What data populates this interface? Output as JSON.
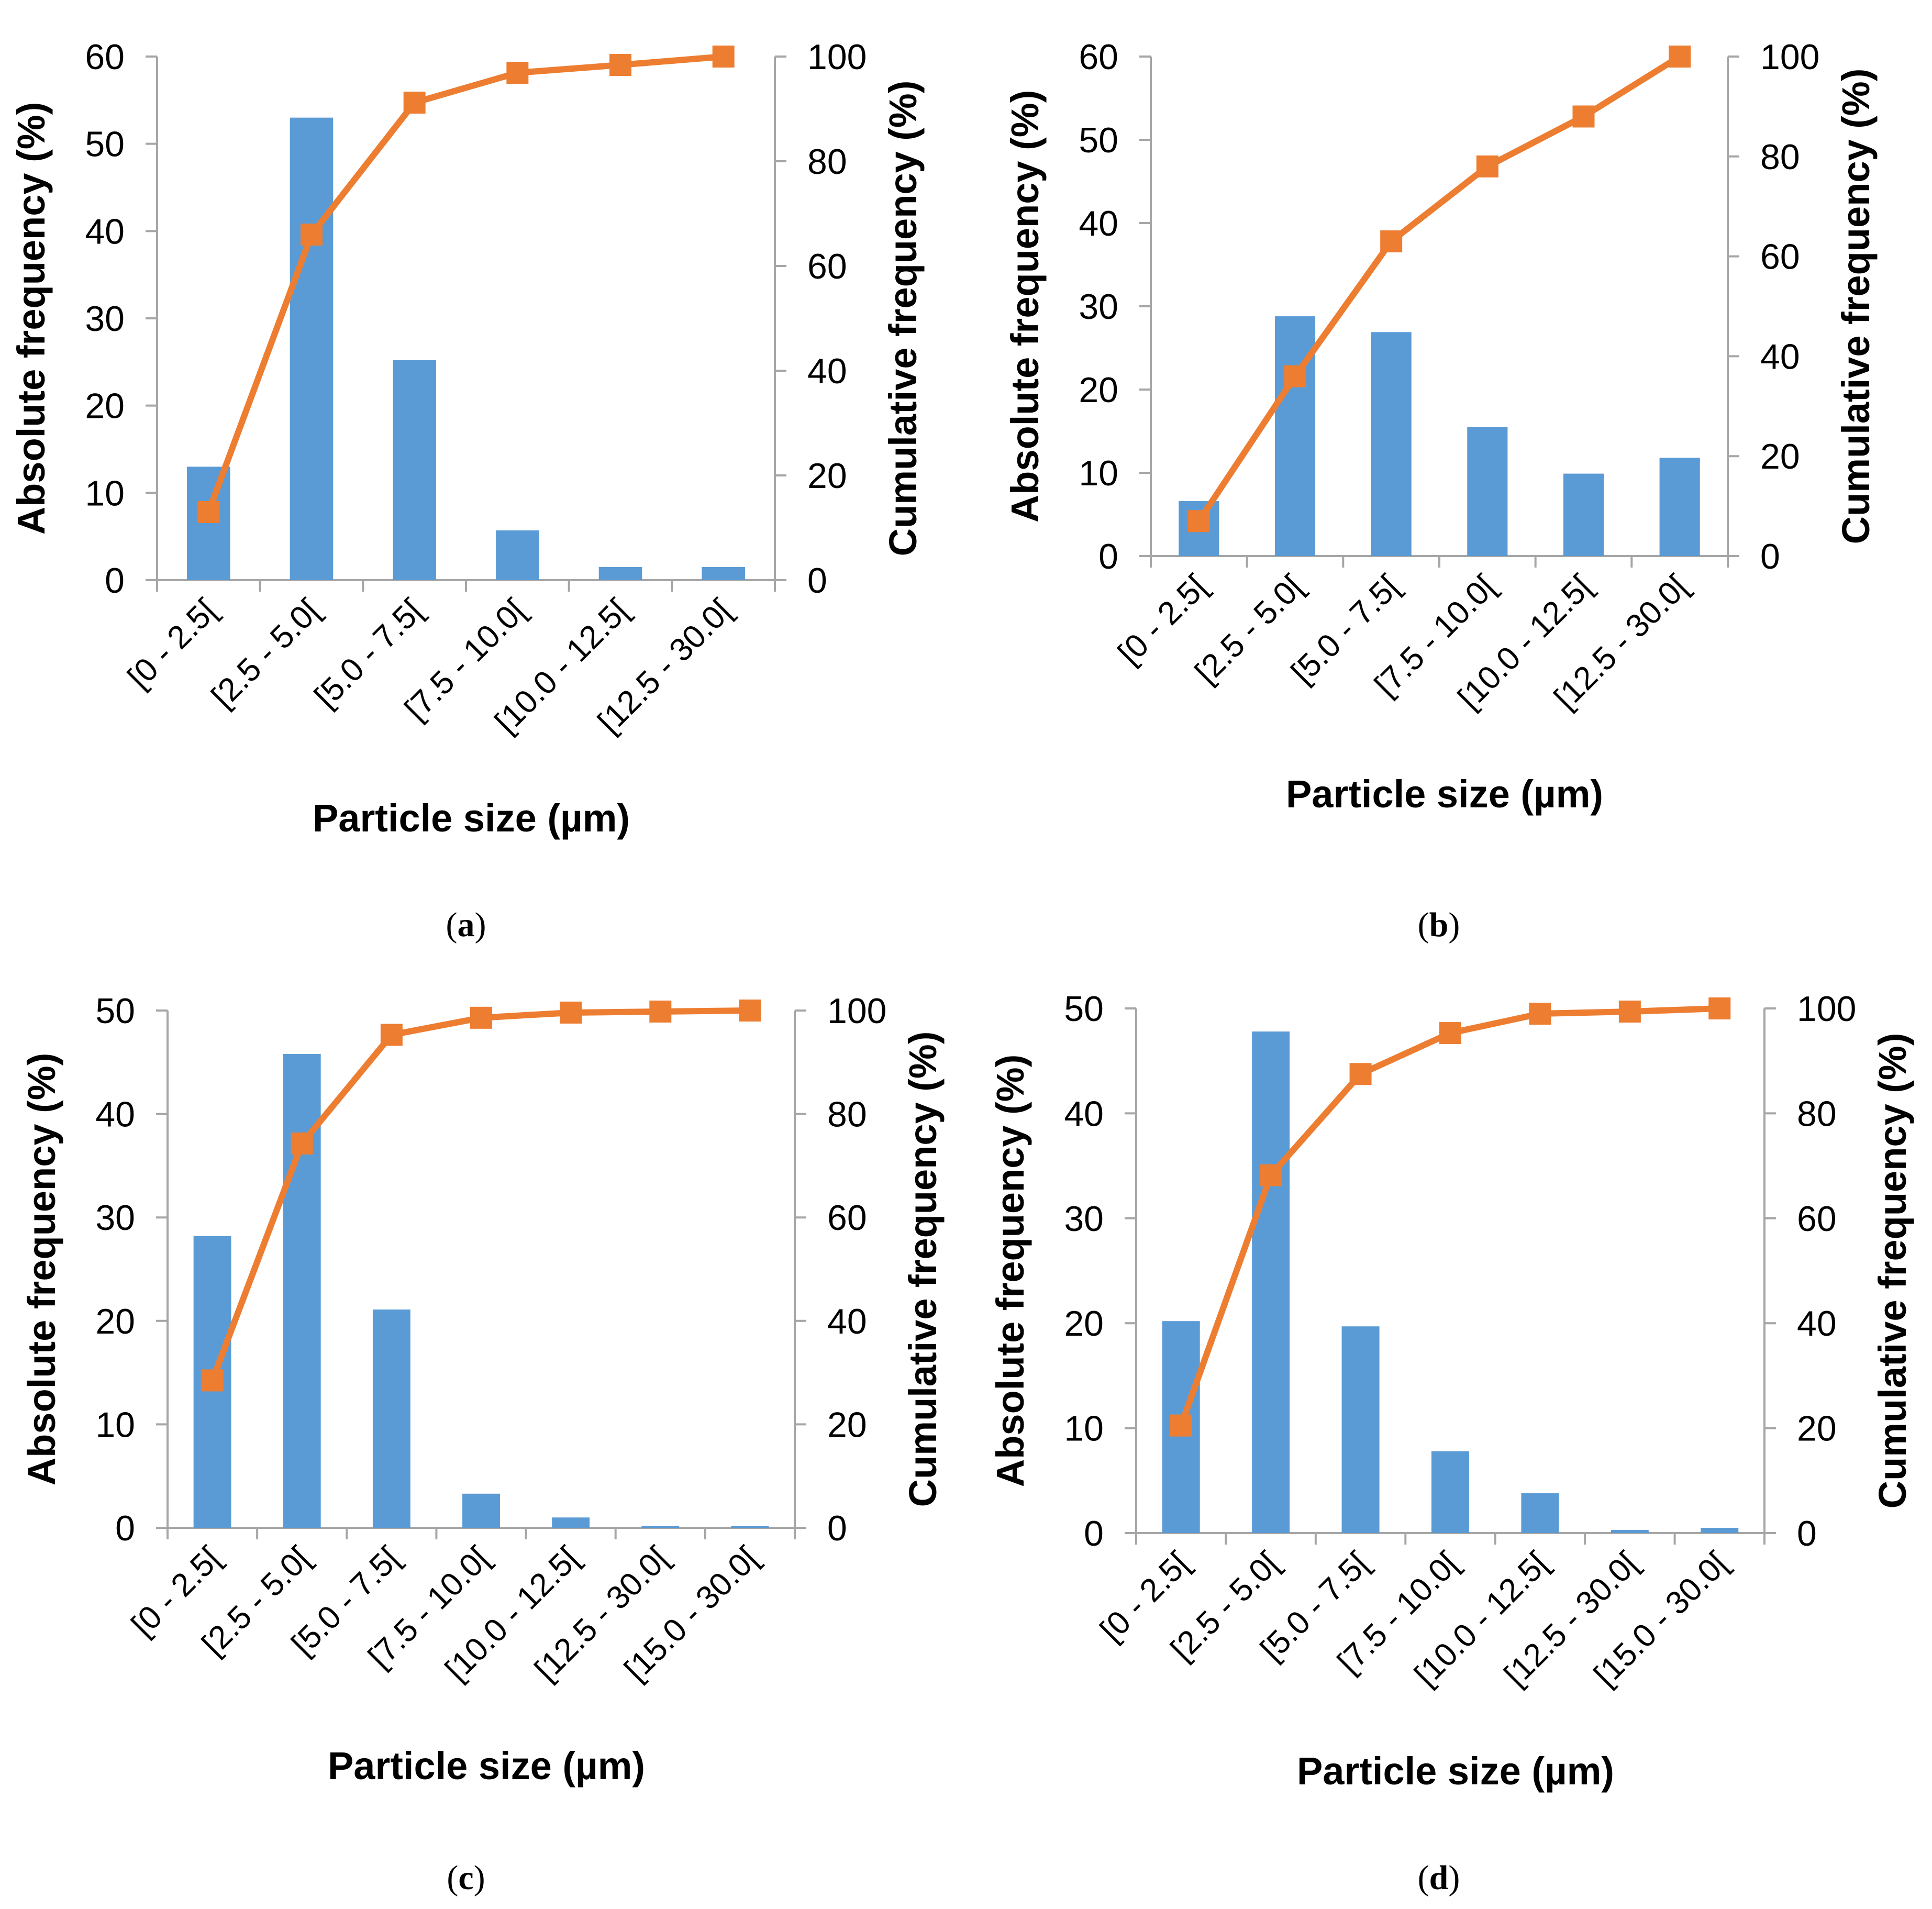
{
  "colors": {
    "bar": "#5b9bd5",
    "line": "#ed7d31",
    "axis": "#a6a6a6",
    "text": "#000000"
  },
  "chart_data": [
    {
      "panel": "(a)",
      "panel_letter": "a",
      "type": "bar+line",
      "categories": [
        "[0 - 2.5[",
        "[2.5 - 5.0[",
        "[5.0 - 7.5[",
        "[7.5 - 10.0[",
        "[10.0 - 12.5[",
        "[12.5 - 30.0["
      ],
      "series": [
        {
          "name": "Absolute frequency",
          "type": "bar",
          "axis": "left",
          "values": [
            13,
            53,
            25.2,
            5.7,
            1.5,
            1.5
          ]
        },
        {
          "name": "Cumulative frequency",
          "type": "line",
          "axis": "right",
          "marker": "square",
          "values": [
            13,
            66,
            91.2,
            96.9,
            98.4,
            100
          ]
        }
      ],
      "xlabel": "Particle size (µm)",
      "ylabel": "Absolute frequency (%)",
      "y2label": "Cumulative frequency (%)",
      "ylim": [
        0,
        60
      ],
      "yticks": [
        0,
        10,
        20,
        30,
        40,
        50,
        60
      ],
      "y2lim": [
        0,
        100
      ],
      "y2ticks": [
        0,
        20,
        40,
        60,
        80,
        100
      ],
      "grid": false
    },
    {
      "panel": "(b)",
      "panel_letter": "b",
      "type": "bar+line",
      "categories": [
        "[0 - 2.5[",
        "[2.5 - 5.0[",
        "[5.0 - 7.5[",
        "[7.5 - 10.0[",
        "[10.0 - 12.5[",
        "[12.5 - 30.0["
      ],
      "series": [
        {
          "name": "Absolute frequency",
          "type": "bar",
          "axis": "left",
          "values": [
            6.6,
            28.8,
            26.9,
            15.5,
            9.9,
            11.8
          ]
        },
        {
          "name": "Cumulative frequency",
          "type": "line",
          "axis": "right",
          "marker": "square",
          "values": [
            7,
            36,
            63,
            78,
            88,
            100
          ]
        }
      ],
      "xlabel": "Particle size (µm)",
      "ylabel": "Absolute frequency (%)",
      "y2label": "Cumulative frequency (%)",
      "ylim": [
        0,
        60
      ],
      "yticks": [
        0,
        10,
        20,
        30,
        40,
        50,
        60
      ],
      "y2lim": [
        0,
        100
      ],
      "y2ticks": [
        0,
        20,
        40,
        60,
        80,
        100
      ],
      "grid": false
    },
    {
      "panel": "(c)",
      "panel_letter": "c",
      "type": "bar+line",
      "categories": [
        "[0 - 2.5[",
        "[2.5 - 5.0[",
        "[5.0 - 7.5[",
        "[7.5 - 10.0[",
        "[10.0 - 12.5[",
        "[12.5 - 30.0[",
        "[15.0 - 30.0["
      ],
      "series": [
        {
          "name": "Absolute frequency",
          "type": "bar",
          "axis": "left",
          "values": [
            28.2,
            45.8,
            21.1,
            3.3,
            1.0,
            0.2,
            0.2
          ]
        },
        {
          "name": "Cumulative frequency",
          "type": "line",
          "axis": "right",
          "marker": "square",
          "values": [
            28.5,
            74.3,
            95.3,
            98.6,
            99.6,
            99.8,
            100
          ]
        }
      ],
      "xlabel": "Particle size (µm)",
      "ylabel": "Absolute frequency (%)",
      "y2label": "Cumulative frequency (%)",
      "ylim": [
        0,
        50
      ],
      "yticks": [
        0,
        10,
        20,
        30,
        40,
        50
      ],
      "y2lim": [
        0,
        100
      ],
      "y2ticks": [
        0,
        20,
        40,
        60,
        80,
        100
      ],
      "grid": false
    },
    {
      "panel": "(d)",
      "panel_letter": "d",
      "type": "bar+line",
      "categories": [
        "[0 - 2.5[",
        "[2.5 - 5.0[",
        "[5.0 - 7.5[",
        "[7.5 - 10.0[",
        "[10.0 - 12.5[",
        "[12.5 - 30.0[",
        "[15.0 - 30.0["
      ],
      "series": [
        {
          "name": "Absolute frequency",
          "type": "bar",
          "axis": "left",
          "values": [
            20.2,
            47.8,
            19.7,
            7.8,
            3.8,
            0.3,
            0.5
          ]
        },
        {
          "name": "Cumulative frequency",
          "type": "line",
          "axis": "right",
          "marker": "square",
          "values": [
            20.5,
            68.2,
            87.5,
            95.3,
            99.0,
            99.4,
            100
          ]
        }
      ],
      "xlabel": "Particle size (µm)",
      "ylabel": "Absolute frequency (%)",
      "y2label": "Cumulative frequency (%)",
      "ylim": [
        0,
        50
      ],
      "yticks": [
        0,
        10,
        20,
        30,
        40,
        50
      ],
      "y2lim": [
        0,
        100
      ],
      "y2ticks": [
        0,
        20,
        40,
        60,
        80,
        100
      ],
      "grid": false
    }
  ]
}
